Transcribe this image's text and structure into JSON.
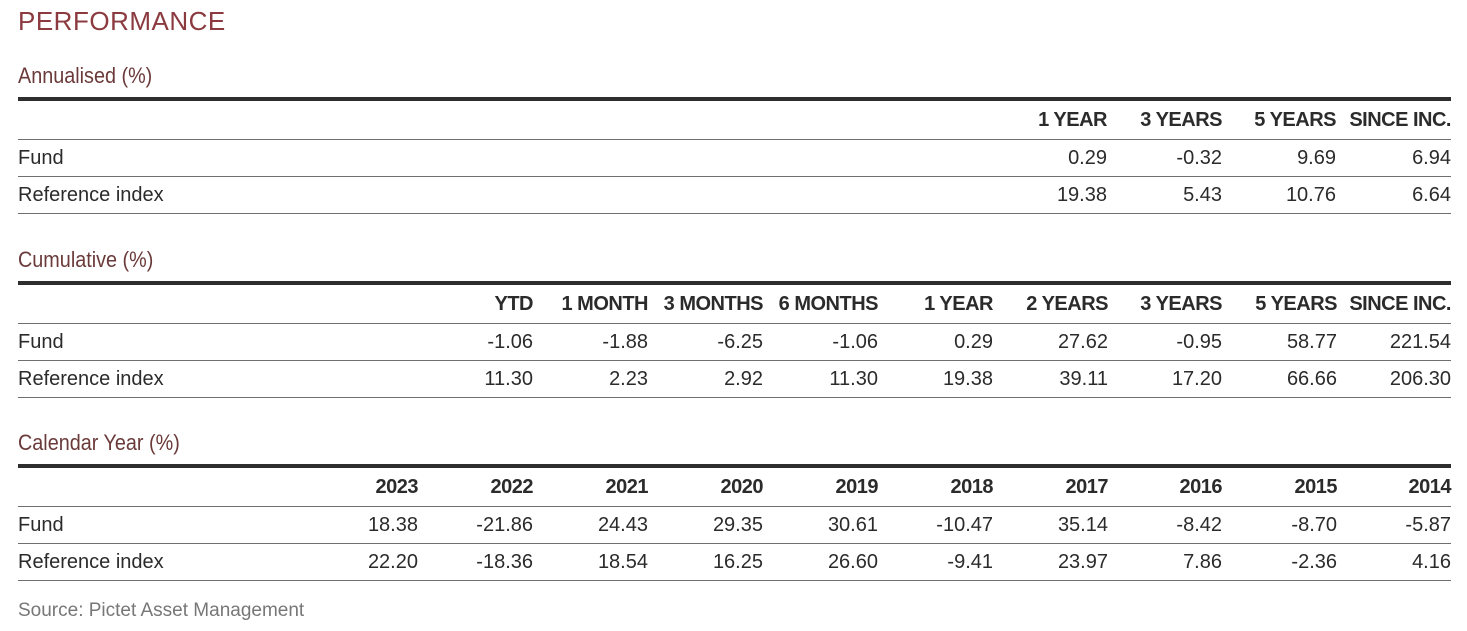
{
  "title": "PERFORMANCE",
  "annualised": {
    "title": "Annualised (%)",
    "columns": [
      "1 YEAR",
      "3 YEARS",
      "5 YEARS",
      "SINCE INC."
    ],
    "rows": [
      {
        "label": "Fund",
        "values": [
          "0.29",
          "-0.32",
          "9.69",
          "6.94"
        ]
      },
      {
        "label": "Reference index",
        "values": [
          "19.38",
          "5.43",
          "10.76",
          "6.64"
        ]
      }
    ]
  },
  "cumulative": {
    "title": "Cumulative (%)",
    "columns": [
      "YTD",
      "1 MONTH",
      "3 MONTHS",
      "6 MONTHS",
      "1 YEAR",
      "2 YEARS",
      "3 YEARS",
      "5 YEARS",
      "SINCE INC."
    ],
    "rows": [
      {
        "label": "Fund",
        "values": [
          "-1.06",
          "-1.88",
          "-6.25",
          "-1.06",
          "0.29",
          "27.62",
          "-0.95",
          "58.77",
          "221.54"
        ]
      },
      {
        "label": "Reference index",
        "values": [
          "11.30",
          "2.23",
          "2.92",
          "11.30",
          "19.38",
          "39.11",
          "17.20",
          "66.66",
          "206.30"
        ]
      }
    ]
  },
  "calendar": {
    "title": "Calendar Year (%)",
    "columns": [
      "2023",
      "2022",
      "2021",
      "2020",
      "2019",
      "2018",
      "2017",
      "2016",
      "2015",
      "2014"
    ],
    "rows": [
      {
        "label": "Fund",
        "values": [
          "18.38",
          "-21.86",
          "24.43",
          "29.35",
          "30.61",
          "-10.47",
          "35.14",
          "-8.42",
          "-8.70",
          "-5.87"
        ]
      },
      {
        "label": "Reference index",
        "values": [
          "22.20",
          "-18.36",
          "18.54",
          "16.25",
          "26.60",
          "-9.41",
          "23.97",
          "7.86",
          "-2.36",
          "4.16"
        ]
      }
    ]
  },
  "source": "Source: Pictet Asset Management"
}
